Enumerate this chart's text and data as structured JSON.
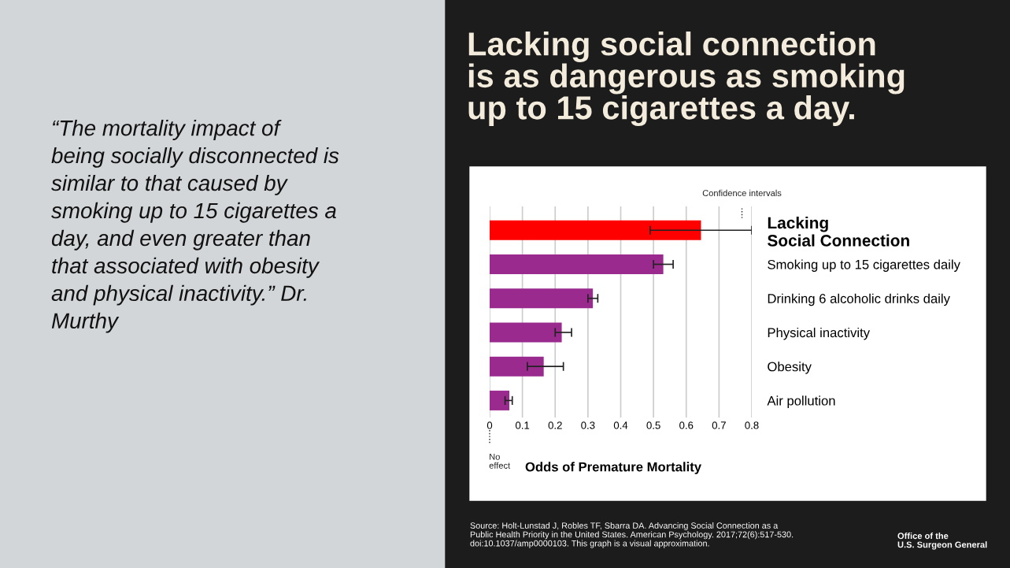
{
  "chart_data": {
    "type": "bar",
    "orientation": "horizontal",
    "title": "Lacking social connection\nis as dangerous as smoking\nup to 15 cigarettes a day.",
    "xlabel": "Odds of Premature Mortality",
    "categories": [
      "Lacking\nSocial Connection",
      "Smoking up to 15 cigarettes daily",
      "Drinking 6 alcoholic drinks daily",
      "Physical inactivity",
      "Obesity",
      "Air pollution"
    ],
    "values": [
      0.645,
      0.53,
      0.315,
      0.22,
      0.165,
      0.06
    ],
    "colors": [
      "#ff0000",
      "#9b2a8e",
      "#9b2a8e",
      "#9b2a8e",
      "#9b2a8e",
      "#9b2a8e"
    ],
    "errors": [
      [
        0.49,
        0.8
      ],
      [
        0.5,
        0.56
      ],
      [
        0.3,
        0.33
      ],
      [
        0.2,
        0.25
      ],
      [
        0.115,
        0.225
      ],
      [
        0.047,
        0.069
      ]
    ],
    "xlim": [
      0,
      0.8
    ],
    "xticks": [
      0,
      0.1,
      0.2,
      0.3,
      0.4,
      0.5,
      0.6,
      0.7,
      0.8
    ],
    "grid": "x",
    "annotations": [
      "“The mortality impact of\nbeing socially disconnected is\nsimilar to that caused by\nsmoking up to 15 cigarettes a\nday, and even greater than\nthat associated with obesity\nand physical inactivity.” Dr.\nMurthy",
      "Confidence intervals",
      "No\neffect",
      "Source: Holt-Lunstad J, Robles TF, Sbarra DA. Advancing Social Connection as a\nPublic Health Priority in the United States. American Psychology. 2017;72(6):517-530.\ndoi:10.1037/amp0000103. This graph is a visual approximation.",
      "Office of the\nU.S. Surgeon General"
    ]
  }
}
